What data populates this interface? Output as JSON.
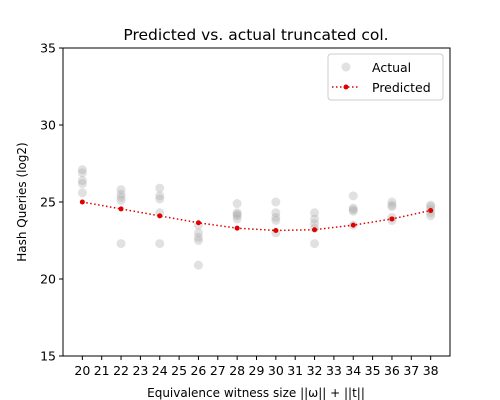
{
  "chart_data": {
    "type": "scatter",
    "title": "Predicted vs. actual truncated col.",
    "xlabel": "Equivalence witness size ||ω|| + ||t||",
    "ylabel": "Hash Queries (log2)",
    "xlim": [
      19,
      39
    ],
    "ylim": [
      15,
      35
    ],
    "x_ticks": [
      20,
      21,
      22,
      23,
      24,
      25,
      26,
      27,
      28,
      29,
      30,
      31,
      32,
      33,
      34,
      35,
      36,
      37,
      38
    ],
    "y_ticks": [
      15,
      20,
      25,
      30,
      35
    ],
    "legend_position": "top-right",
    "series": [
      {
        "name": "Actual",
        "kind": "scatter",
        "color": "#a9a9a9",
        "points": [
          [
            20,
            27.1
          ],
          [
            20,
            26.9
          ],
          [
            20,
            26.4
          ],
          [
            20,
            26.2
          ],
          [
            20,
            25.6
          ],
          [
            22,
            25.8
          ],
          [
            22,
            25.5
          ],
          [
            22,
            25.3
          ],
          [
            22,
            25.1
          ],
          [
            22,
            22.3
          ],
          [
            24,
            25.9
          ],
          [
            24,
            25.4
          ],
          [
            24,
            25.2
          ],
          [
            24,
            24.3
          ],
          [
            24,
            22.3
          ],
          [
            26,
            23.5
          ],
          [
            26,
            23.0
          ],
          [
            26,
            22.7
          ],
          [
            26,
            22.5
          ],
          [
            26,
            20.9
          ],
          [
            28,
            24.9
          ],
          [
            28,
            24.3
          ],
          [
            28,
            24.2
          ],
          [
            28,
            24.1
          ],
          [
            28,
            23.9
          ],
          [
            30,
            25.0
          ],
          [
            30,
            24.3
          ],
          [
            30,
            24.0
          ],
          [
            30,
            23.8
          ],
          [
            30,
            23.0
          ],
          [
            32,
            24.3
          ],
          [
            32,
            23.9
          ],
          [
            32,
            23.6
          ],
          [
            32,
            23.3
          ],
          [
            32,
            22.3
          ],
          [
            34,
            25.4
          ],
          [
            34,
            24.6
          ],
          [
            34,
            24.5
          ],
          [
            34,
            24.4
          ],
          [
            34,
            23.5
          ],
          [
            36,
            25.0
          ],
          [
            36,
            24.8
          ],
          [
            36,
            24.7
          ],
          [
            36,
            24.0
          ],
          [
            36,
            23.8
          ],
          [
            38,
            24.8
          ],
          [
            38,
            24.7
          ],
          [
            38,
            24.5
          ],
          [
            38,
            24.3
          ],
          [
            38,
            24.1
          ]
        ]
      },
      {
        "name": "Predicted",
        "kind": "line",
        "color": "#e00000",
        "points": [
          [
            20,
            25.0
          ],
          [
            22,
            24.55
          ],
          [
            24,
            24.1
          ],
          [
            26,
            23.65
          ],
          [
            28,
            23.3
          ],
          [
            30,
            23.15
          ],
          [
            32,
            23.2
          ],
          [
            34,
            23.5
          ],
          [
            36,
            23.9
          ],
          [
            38,
            24.45
          ]
        ]
      }
    ]
  }
}
